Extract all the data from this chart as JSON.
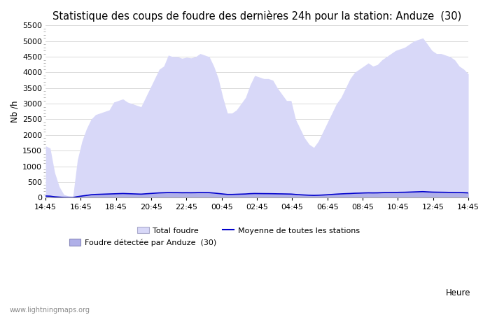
{
  "title": "Statistique des coups de foudre des dernières 24h pour la station: Anduze  (30)",
  "ylabel": "Nb /h",
  "xlabel": "Heure",
  "watermark": "www.lightningmaps.org",
  "ylim": [
    0,
    5500
  ],
  "yticks": [
    0,
    500,
    1000,
    1500,
    2000,
    2500,
    3000,
    3500,
    4000,
    4500,
    5000,
    5500
  ],
  "xtick_labels": [
    "14:45",
    "16:45",
    "18:45",
    "20:45",
    "22:45",
    "00:45",
    "02:45",
    "04:45",
    "06:45",
    "08:45",
    "10:45",
    "12:45",
    "14:45"
  ],
  "background_color": "#ffffff",
  "plot_bg_color": "#ffffff",
  "grid_color": "#cccccc",
  "total_foudre_color": "#d8d8f8",
  "detected_color": "#b0b0e8",
  "moyenne_color": "#0000cc",
  "total_foudre_values": [
    1650,
    1580,
    800,
    350,
    100,
    50,
    30,
    1200,
    1800,
    2200,
    2500,
    2650,
    2700,
    2750,
    2800,
    3050,
    3100,
    3150,
    3050,
    3000,
    2950,
    2900,
    3200,
    3500,
    3800,
    4100,
    4200,
    4550,
    4500,
    4500,
    4450,
    4480,
    4460,
    4500,
    4600,
    4550,
    4500,
    4200,
    3800,
    3200,
    2700,
    2700,
    2800,
    3000,
    3200,
    3600,
    3900,
    3850,
    3800,
    3800,
    3750,
    3500,
    3300,
    3100,
    3100,
    2500,
    2200,
    1900,
    1700,
    1600,
    1800,
    2100,
    2400,
    2700,
    3000,
    3200,
    3500,
    3800,
    4000,
    4100,
    4200,
    4300,
    4200,
    4250,
    4400,
    4500,
    4600,
    4700,
    4750,
    4800,
    4900,
    5000,
    5050,
    5100,
    4900,
    4700,
    4600,
    4600,
    4550,
    4500,
    4400,
    4200,
    4100,
    3950
  ],
  "detected_values": [
    50,
    45,
    25,
    15,
    5,
    2,
    2,
    30,
    50,
    70,
    90,
    100,
    105,
    110,
    115,
    120,
    125,
    130,
    125,
    120,
    115,
    110,
    120,
    130,
    140,
    150,
    155,
    160,
    158,
    158,
    155,
    156,
    155,
    157,
    162,
    160,
    158,
    145,
    130,
    115,
    100,
    100,
    105,
    110,
    115,
    125,
    130,
    128,
    126,
    125,
    123,
    120,
    118,
    115,
    112,
    100,
    90,
    82,
    75,
    70,
    75,
    82,
    90,
    100,
    110,
    118,
    125,
    130,
    138,
    142,
    148,
    152,
    150,
    152,
    157,
    160,
    163,
    165,
    168,
    170,
    175,
    180,
    185,
    190,
    182,
    175,
    172,
    170,
    168,
    165,
    162,
    160,
    157,
    150
  ],
  "moyenne_values": [
    50,
    45,
    25,
    15,
    5,
    2,
    2,
    30,
    50,
    70,
    90,
    100,
    105,
    110,
    115,
    120,
    125,
    130,
    125,
    120,
    115,
    110,
    120,
    130,
    140,
    150,
    155,
    160,
    158,
    158,
    155,
    156,
    155,
    157,
    162,
    160,
    158,
    145,
    130,
    115,
    100,
    100,
    105,
    110,
    115,
    125,
    130,
    128,
    126,
    125,
    123,
    120,
    118,
    115,
    112,
    100,
    90,
    82,
    75,
    70,
    75,
    82,
    90,
    100,
    110,
    118,
    125,
    130,
    138,
    142,
    148,
    152,
    150,
    152,
    157,
    160,
    163,
    165,
    168,
    170,
    175,
    180,
    185,
    190,
    182,
    175,
    172,
    170,
    168,
    165,
    162,
    160,
    157,
    150
  ],
  "legend_total_label": "Total foudre",
  "legend_detected_label": "Foudre détectée par Anduze  (30)",
  "legend_moyenne_label": "Moyenne de toutes les stations",
  "title_fontsize": 10.5,
  "axis_fontsize": 8.5,
  "tick_fontsize": 8
}
